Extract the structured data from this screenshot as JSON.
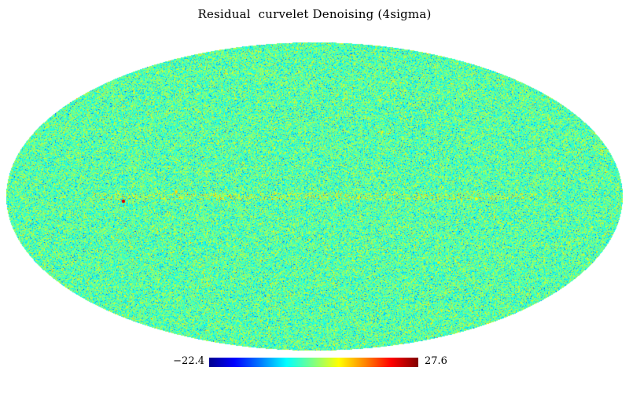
{
  "title": "Residual  curvelet Denoising (4sigma)",
  "colorbar": {
    "min_label": "−22.4",
    "max_label": "27.6",
    "min_value": -22.4,
    "max_value": 27.6
  },
  "map": {
    "projection": "mollweide",
    "colormap": "jet",
    "background_color": "#ffffff"
  }
}
